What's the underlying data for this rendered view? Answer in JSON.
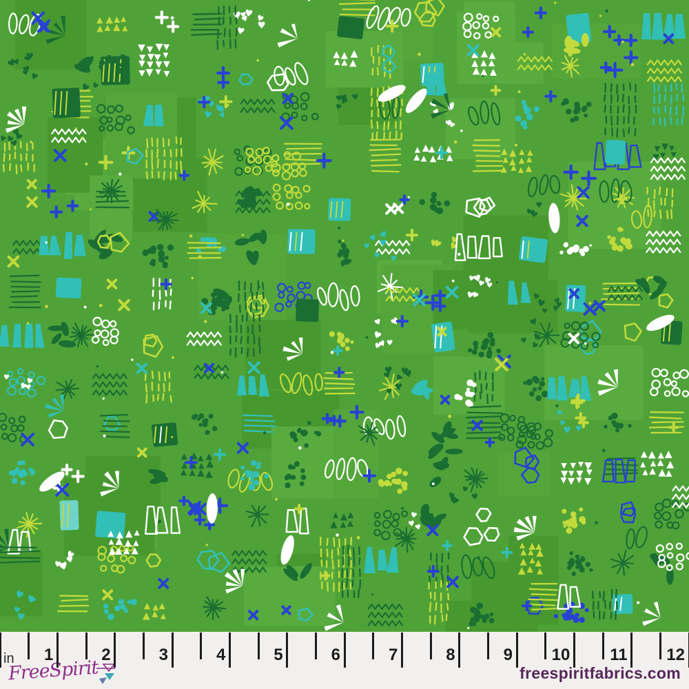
{
  "fabric": {
    "background": "#4fa238",
    "background_variants": [
      "#58ab3e",
      "#47992f",
      "#54a63b"
    ],
    "palette": {
      "dark_green": "#1a6e32",
      "yellow_green": "#c2db3c",
      "teal": "#32bfb6",
      "light_teal": "#6fd3cb",
      "blue": "#2742d4",
      "white": "#ffffff"
    },
    "motifs": [
      "dot-cluster",
      "ring-cluster",
      "dash-rows",
      "line-stripes",
      "plus-cross",
      "x-cross",
      "triangle-rows",
      "heart-cluster",
      "polygon-outline",
      "leaf-cluster",
      "wedge-fan",
      "trapezoid-blocks",
      "starburst",
      "oval-outlines",
      "solid-block",
      "zigzag-rows",
      "white-leaf"
    ]
  },
  "ruler": {
    "unit": "in",
    "numbers": [
      "1",
      "2",
      "3",
      "4",
      "5",
      "6",
      "7",
      "8",
      "9",
      "10",
      "11",
      "12"
    ],
    "tick_color": "#1c1c1c",
    "number_color": "#1c1c1c",
    "band_color": "#f2f0ee"
  },
  "footer": {
    "logo_text": "FreeSpirit",
    "logo_color": "#8e2f8a",
    "logo_icon_teal": "#3aa8b8",
    "logo_icon_slate": "#5f7fae",
    "website": "freespiritfabrics.com",
    "website_color": "#55275a"
  }
}
